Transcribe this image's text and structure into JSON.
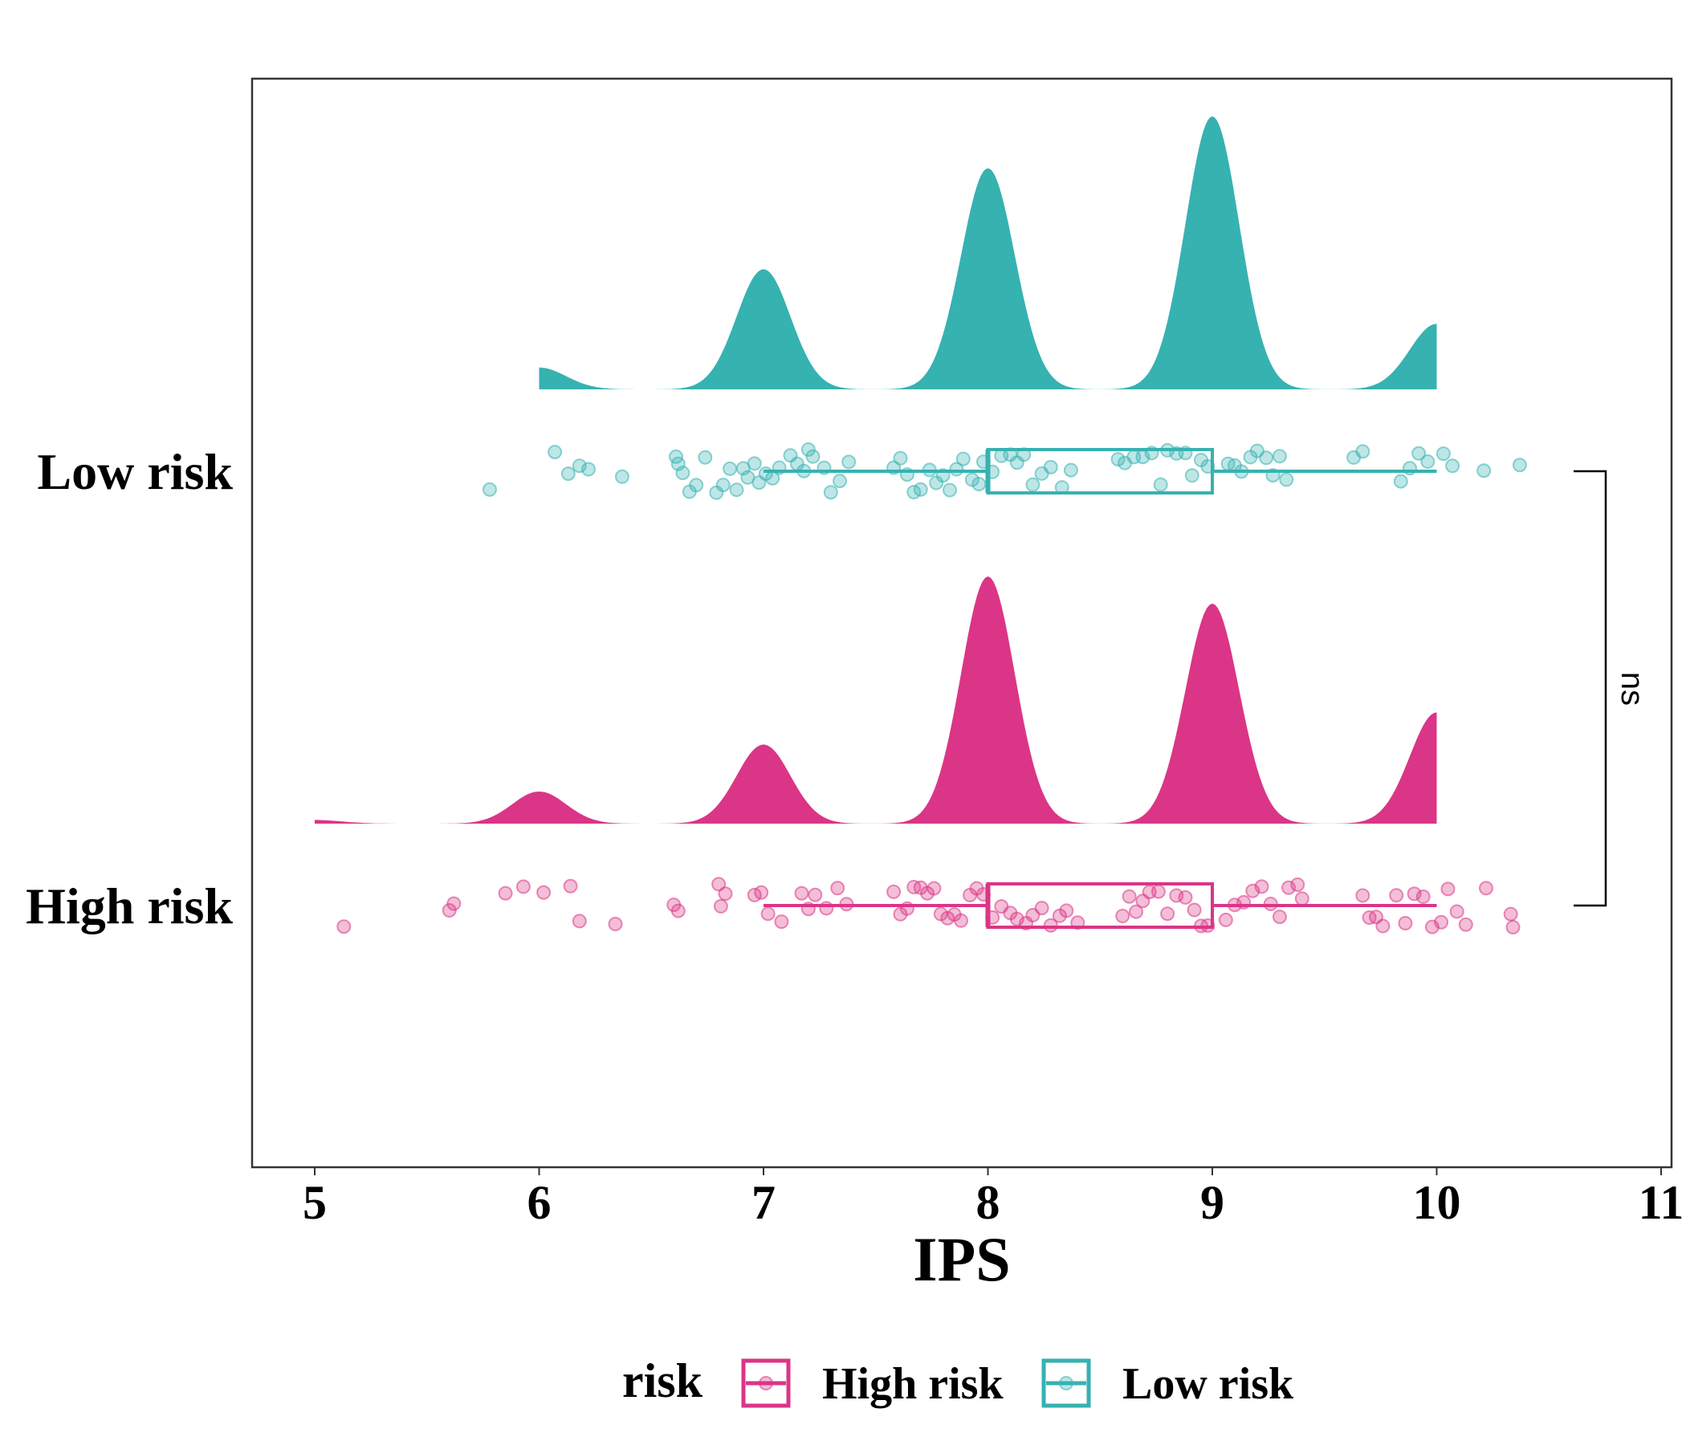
{
  "chart_data": {
    "type": "raincloud",
    "xlabel": "IPS",
    "xlim": [
      4.7,
      11
    ],
    "xticks": [
      5,
      6,
      7,
      8,
      9,
      10,
      11
    ],
    "orientation": "horizontal",
    "categories": [
      "Low risk",
      "High risk"
    ],
    "legend": {
      "title": "risk",
      "position": "bottom",
      "entries": [
        "High risk",
        "Low risk"
      ]
    },
    "significance": {
      "label": "ns",
      "between": [
        "Low risk",
        "High risk"
      ]
    },
    "colors": {
      "High risk": "#DB3587",
      "Low risk": "#36B2B1"
    },
    "series": [
      {
        "name": "Low risk",
        "box": {
          "min": 7,
          "q1": 8,
          "median": 8,
          "q3": 9,
          "max": 10
        },
        "density_range": [
          6,
          10
        ],
        "density_peaks": [
          {
            "x": 6,
            "height": 0.08
          },
          {
            "x": 7,
            "height": 0.44
          },
          {
            "x": 8,
            "height": 0.81
          },
          {
            "x": 9,
            "height": 1.0
          },
          {
            "x": 10,
            "height": 0.24
          }
        ],
        "points": [
          5.78,
          6.07,
          6.13,
          6.18,
          6.22,
          6.37,
          6.61,
          6.62,
          6.64,
          6.67,
          6.7,
          6.74,
          6.79,
          6.82,
          6.85,
          6.88,
          6.91,
          6.93,
          6.96,
          6.98,
          7.01,
          7.04,
          7.07,
          7.12,
          7.15,
          7.18,
          7.2,
          7.22,
          7.27,
          7.3,
          7.34,
          7.38,
          7.58,
          7.61,
          7.64,
          7.67,
          7.7,
          7.74,
          7.77,
          7.8,
          7.83,
          7.86,
          7.89,
          7.93,
          7.96,
          7.98,
          8.02,
          8.06,
          8.1,
          8.13,
          8.16,
          8.2,
          8.24,
          8.28,
          8.33,
          8.37,
          8.58,
          8.61,
          8.65,
          8.69,
          8.73,
          8.77,
          8.8,
          8.84,
          8.88,
          8.91,
          8.95,
          8.98,
          9.07,
          9.1,
          9.13,
          9.17,
          9.2,
          9.24,
          9.27,
          9.3,
          9.33,
          9.63,
          9.67,
          9.84,
          9.88,
          9.92,
          9.96,
          10.03,
          10.07,
          10.21,
          10.37
        ]
      },
      {
        "name": "High risk",
        "box": {
          "min": 7,
          "q1": 8,
          "median": 8,
          "q3": 9,
          "max": 10
        },
        "density_range": [
          5,
          10
        ],
        "density_peaks": [
          {
            "x": 5,
            "height": 0.015
          },
          {
            "x": 6,
            "height": 0.13
          },
          {
            "x": 7,
            "height": 0.32
          },
          {
            "x": 8,
            "height": 1.0
          },
          {
            "x": 9,
            "height": 0.89
          },
          {
            "x": 10,
            "height": 0.45
          }
        ],
        "points": [
          5.13,
          5.6,
          5.62,
          5.85,
          5.93,
          6.02,
          6.14,
          6.18,
          6.34,
          6.6,
          6.62,
          6.8,
          6.81,
          6.83,
          6.96,
          6.99,
          7.02,
          7.08,
          7.17,
          7.2,
          7.23,
          7.28,
          7.33,
          7.37,
          7.58,
          7.61,
          7.64,
          7.67,
          7.7,
          7.73,
          7.76,
          7.79,
          7.82,
          7.85,
          7.88,
          7.92,
          7.95,
          7.98,
          8.02,
          8.06,
          8.1,
          8.13,
          8.17,
          8.2,
          8.24,
          8.28,
          8.32,
          8.35,
          8.4,
          8.6,
          8.63,
          8.66,
          8.69,
          8.72,
          8.76,
          8.8,
          8.84,
          8.88,
          8.92,
          8.95,
          8.98,
          9.06,
          9.1,
          9.14,
          9.18,
          9.22,
          9.26,
          9.3,
          9.34,
          9.38,
          9.4,
          9.67,
          9.7,
          9.73,
          9.76,
          9.82,
          9.86,
          9.9,
          9.94,
          9.98,
          10.02,
          10.05,
          10.09,
          10.13,
          10.22,
          10.33,
          10.34
        ]
      }
    ]
  }
}
